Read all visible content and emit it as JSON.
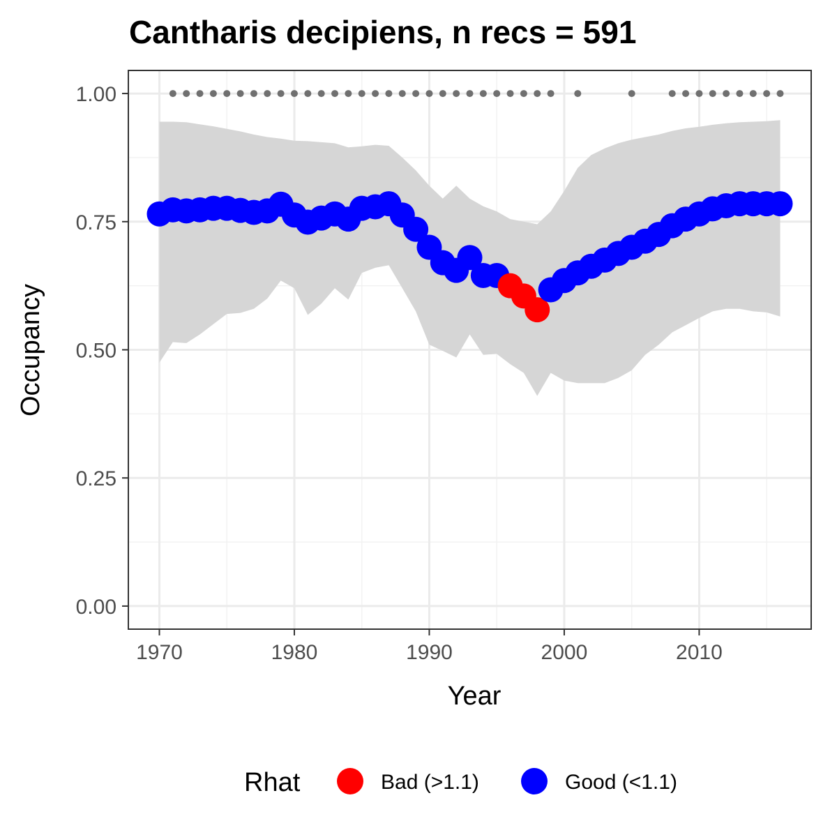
{
  "chart_data": {
    "type": "line",
    "title": "Cantharis decipiens, n recs = 591",
    "xlabel": "Year",
    "ylabel": "Occupancy",
    "xlim": [
      1967.7,
      2018.3
    ],
    "ylim": [
      -0.045,
      1.045
    ],
    "x_ticks": [
      1970,
      1980,
      1990,
      2000,
      2010
    ],
    "x_tick_labels": [
      "1970",
      "1980",
      "1990",
      "2000",
      "2010"
    ],
    "y_ticks": [
      0,
      0.25,
      0.5,
      0.75,
      1.0
    ],
    "y_tick_labels": [
      "0.00",
      "0.25",
      "0.50",
      "0.75",
      "1.00"
    ],
    "grid": true,
    "legend": {
      "title": "Rhat",
      "placement": "bottom",
      "entries": [
        {
          "label": "Bad (>1.1)",
          "color": "#ff0000"
        },
        {
          "label": "Good (<1.1)",
          "color": "#0000ff"
        }
      ]
    },
    "colors": {
      "good": "#0000ff",
      "bad": "#ff0000",
      "ribbon": "#d6d6d6",
      "record_dots": "#707070"
    },
    "series": [
      {
        "x": [
          1970,
          1971,
          1972,
          1973,
          1974,
          1975,
          1976,
          1977,
          1978,
          1979,
          1980,
          1981,
          1982,
          1983,
          1984,
          1985,
          1986,
          1987,
          1988,
          1989,
          1990,
          1991,
          1992,
          1993,
          1994,
          1995,
          1996,
          1997,
          1998,
          1999,
          2000,
          2001,
          2002,
          2003,
          2004,
          2005,
          2006,
          2007,
          2008,
          2009,
          2010,
          2011,
          2012,
          2013,
          2014,
          2015,
          2016
        ],
        "y": [
          0.765,
          0.773,
          0.771,
          0.773,
          0.776,
          0.776,
          0.772,
          0.768,
          0.771,
          0.784,
          0.763,
          0.749,
          0.757,
          0.765,
          0.755,
          0.776,
          0.779,
          0.785,
          0.763,
          0.735,
          0.7,
          0.67,
          0.655,
          0.68,
          0.645,
          0.645,
          0.625,
          0.605,
          0.578,
          0.617,
          0.635,
          0.65,
          0.663,
          0.675,
          0.688,
          0.7,
          0.712,
          0.725,
          0.742,
          0.755,
          0.765,
          0.775,
          0.781,
          0.785,
          0.785,
          0.785,
          0.785
        ],
        "rhat": [
          "Good",
          "Good",
          "Good",
          "Good",
          "Good",
          "Good",
          "Good",
          "Good",
          "Good",
          "Good",
          "Good",
          "Good",
          "Good",
          "Good",
          "Good",
          "Good",
          "Good",
          "Good",
          "Good",
          "Good",
          "Good",
          "Good",
          "Good",
          "Good",
          "Good",
          "Good",
          "Bad",
          "Bad",
          "Bad",
          "Good",
          "Good",
          "Good",
          "Good",
          "Good",
          "Good",
          "Good",
          "Good",
          "Good",
          "Good",
          "Good",
          "Good",
          "Good",
          "Good",
          "Good",
          "Good",
          "Good",
          "Good"
        ],
        "upper": [
          0.945,
          0.945,
          0.944,
          0.94,
          0.936,
          0.931,
          0.926,
          0.92,
          0.915,
          0.912,
          0.908,
          0.907,
          0.905,
          0.903,
          0.895,
          0.897,
          0.9,
          0.898,
          0.875,
          0.85,
          0.82,
          0.795,
          0.82,
          0.795,
          0.78,
          0.77,
          0.755,
          0.75,
          0.745,
          0.77,
          0.81,
          0.855,
          0.88,
          0.893,
          0.903,
          0.91,
          0.915,
          0.92,
          0.927,
          0.932,
          0.935,
          0.939,
          0.942,
          0.944,
          0.945,
          0.946,
          0.948
        ],
        "lower": [
          0.475,
          0.515,
          0.513,
          0.53,
          0.55,
          0.57,
          0.572,
          0.58,
          0.6,
          0.635,
          0.62,
          0.568,
          0.59,
          0.62,
          0.598,
          0.65,
          0.66,
          0.665,
          0.62,
          0.575,
          0.51,
          0.498,
          0.485,
          0.53,
          0.49,
          0.492,
          0.472,
          0.455,
          0.41,
          0.455,
          0.44,
          0.435,
          0.435,
          0.435,
          0.445,
          0.46,
          0.49,
          0.51,
          0.534,
          0.548,
          0.562,
          0.575,
          0.58,
          0.58,
          0.575,
          0.573,
          0.565
        ]
      }
    ],
    "record_years": [
      1971,
      1972,
      1973,
      1974,
      1975,
      1976,
      1977,
      1978,
      1979,
      1980,
      1981,
      1982,
      1983,
      1984,
      1985,
      1986,
      1987,
      1988,
      1989,
      1990,
      1991,
      1992,
      1993,
      1994,
      1995,
      1996,
      1997,
      1998,
      1999,
      2001,
      2005,
      2008,
      2009,
      2010,
      2011,
      2012,
      2013,
      2014,
      2015,
      2016
    ],
    "record_y": 1.0
  }
}
